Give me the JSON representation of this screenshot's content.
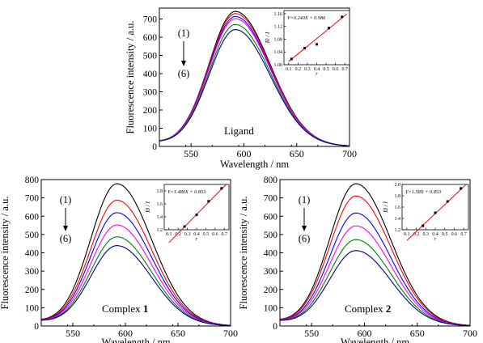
{
  "figure": {
    "panels": [
      "ligand",
      "complex1",
      "complex2"
    ]
  },
  "chart_data": [
    {
      "id": "ligand",
      "type": "line",
      "xlabel": "Wavelength / nm",
      "ylabel": "Fluorescence intensity / a.u.",
      "xlim": [
        520,
        700
      ],
      "ylim": [
        0,
        760
      ],
      "xticks": [
        550,
        600,
        650,
        700
      ],
      "yticks": [
        0,
        100,
        200,
        300,
        400,
        500,
        600,
        700
      ],
      "panel_label": "Ligand",
      "panel_label_bold": "",
      "arrow_top": "(1)",
      "arrow_bottom": "(6)",
      "series_colors": [
        "#000000",
        "#ff0000",
        "#0000ff",
        "#ff00ff",
        "#008000",
        "#00008b"
      ],
      "peak_x": 592,
      "series_peaks": [
        740,
        728,
        712,
        700,
        668,
        640
      ],
      "baseline_left": 20,
      "inset": {
        "equation": "Y=0.240X + 0.986",
        "xlabel": "r",
        "ylabel": "I0 / I",
        "xlim": [
          0.05,
          0.75
        ],
        "ylim": [
          1.0,
          1.17
        ],
        "xticks": [
          0.1,
          0.2,
          0.3,
          0.4,
          0.5,
          0.6,
          0.7
        ],
        "yticks": [
          1.0,
          1.04,
          1.08,
          1.12,
          1.16
        ],
        "ytick_labels": [
          "1.00",
          "1.04",
          "1.08",
          "1.12",
          "1.16"
        ],
        "points_x": [
          0.13,
          0.27,
          0.4,
          0.53,
          0.67
        ],
        "points_y": [
          1.018,
          1.052,
          1.064,
          1.115,
          1.15
        ],
        "fit": {
          "slope": 0.24,
          "intercept": 0.986
        }
      }
    },
    {
      "id": "complex1",
      "type": "line",
      "xlabel": "Wavelength / nm",
      "ylabel": "Fluorescence intensity / a.u.",
      "xlim": [
        520,
        700
      ],
      "ylim": [
        0,
        800
      ],
      "xticks": [
        550,
        600,
        650,
        700
      ],
      "yticks": [
        0,
        100,
        200,
        300,
        400,
        500,
        600,
        700,
        800
      ],
      "panel_label": "Complex ",
      "panel_label_bold": "1",
      "arrow_top": "(1)",
      "arrow_bottom": "(6)",
      "series_colors": [
        "#000000",
        "#ff0000",
        "#0000ff",
        "#ff00ff",
        "#008000",
        "#00008b"
      ],
      "peak_x": 592,
      "series_peaks": [
        775,
        685,
        617,
        550,
        485,
        437
      ],
      "baseline_left": 25,
      "inset": {
        "equation": "Y=1.480X + 0.853",
        "xlabel": "r",
        "ylabel": "I0 / I",
        "xlim": [
          0.05,
          0.75
        ],
        "ylim": [
          1.2,
          1.9
        ],
        "xticks": [
          0.1,
          0.2,
          0.3,
          0.4,
          0.5,
          0.6,
          0.7
        ],
        "yticks": [
          1.2,
          1.4,
          1.6,
          1.8
        ],
        "ytick_labels": [
          "1.2",
          "1.4",
          "1.6",
          "1.8"
        ],
        "points_x": [
          0.27,
          0.4,
          0.53,
          0.67
        ],
        "points_y": [
          1.25,
          1.43,
          1.64,
          1.84
        ],
        "fit": {
          "slope": 1.48,
          "intercept": 0.853
        }
      }
    },
    {
      "id": "complex2",
      "type": "line",
      "xlabel": "Wavelength / nm",
      "ylabel": "Fluorescence intensity / a.u.",
      "xlim": [
        520,
        700
      ],
      "ylim": [
        0,
        800
      ],
      "xticks": [
        550,
        600,
        650,
        700
      ],
      "yticks": [
        0,
        100,
        200,
        300,
        400,
        500,
        600,
        700,
        800
      ],
      "panel_label": "Complex ",
      "panel_label_bold": "2",
      "arrow_top": "(1)",
      "arrow_bottom": "(6)",
      "series_colors": [
        "#000000",
        "#ff0000",
        "#0000ff",
        "#ff00ff",
        "#008000",
        "#00008b"
      ],
      "peak_x": 592,
      "series_peaks": [
        775,
        708,
        615,
        545,
        470,
        410
      ],
      "baseline_left": 25,
      "inset": {
        "equation": "Y=1.58X + 0.853",
        "xlabel": "r",
        "ylabel": "I0 / I",
        "xlim": [
          0.05,
          0.75
        ],
        "ylim": [
          1.2,
          2.0
        ],
        "xticks": [
          0.1,
          0.2,
          0.3,
          0.4,
          0.5,
          0.6,
          0.7
        ],
        "yticks": [
          1.2,
          1.4,
          1.6,
          1.8,
          2.0
        ],
        "ytick_labels": [
          "1.2",
          "1.4",
          "1.6",
          "1.8",
          "2.0"
        ],
        "points_x": [
          0.27,
          0.4,
          0.53,
          0.67
        ],
        "points_y": [
          1.27,
          1.5,
          1.7,
          1.93
        ],
        "fit": {
          "slope": 1.58,
          "intercept": 0.853
        }
      }
    }
  ]
}
